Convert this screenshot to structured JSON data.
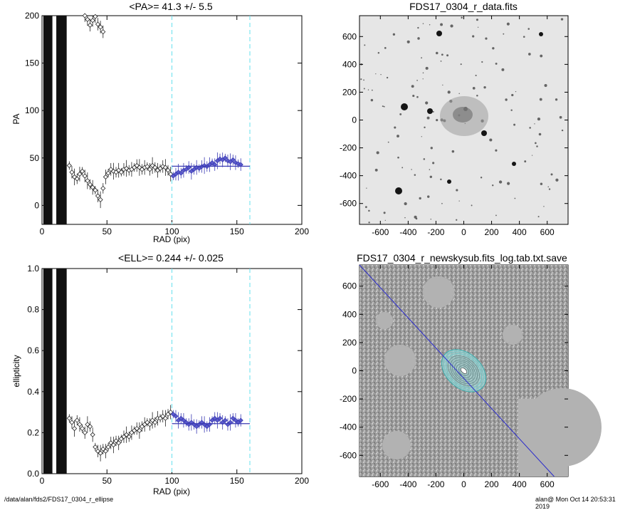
{
  "footer": {
    "path": "/data/alan/fds2/FDS17_0304_r_ellipse",
    "stamp": "alan@  Mon Oct 14 20:53:31 2019"
  },
  "chart_data": [
    {
      "type": "scatter",
      "title": "<PA>=  41.3 +/-   5.5",
      "xlabel": "RAD (pix)",
      "ylabel": "PA",
      "xlim": [
        0,
        200
      ],
      "ylim": [
        -20,
        200
      ],
      "xticks": [
        0,
        50,
        100,
        150,
        200
      ],
      "yticks": [
        0,
        50,
        100,
        150,
        200
      ],
      "reference_lines_x": [
        100,
        160
      ],
      "mean_line": {
        "value": 41.3,
        "x_range": [
          100,
          160
        ],
        "color": "#3b3bb3"
      },
      "series": [
        {
          "values": [
            [
              21,
              42
            ],
            [
              23,
              35
            ],
            [
              25,
              30
            ],
            [
              27,
              28
            ],
            [
              29,
              33
            ],
            [
              31,
              36
            ],
            [
              33,
              31
            ],
            [
              35,
              26
            ],
            [
              37,
              22
            ],
            [
              39,
              19
            ],
            [
              41,
              16
            ],
            [
              43,
              10
            ],
            [
              45,
              6
            ],
            [
              47,
              18
            ],
            [
              49,
              30
            ],
            [
              51,
              34
            ],
            [
              53,
              38
            ],
            [
              55,
              36
            ],
            [
              57,
              35
            ],
            [
              59,
              37
            ],
            [
              61,
              35
            ],
            [
              63,
              38
            ],
            [
              65,
              39
            ],
            [
              67,
              37
            ],
            [
              69,
              38
            ],
            [
              71,
              40
            ],
            [
              73,
              42
            ],
            [
              75,
              40
            ],
            [
              77,
              38
            ],
            [
              79,
              40
            ],
            [
              81,
              41
            ],
            [
              83,
              38
            ],
            [
              85,
              42
            ],
            [
              87,
              40
            ],
            [
              89,
              37
            ],
            [
              91,
              39
            ],
            [
              93,
              41
            ],
            [
              95,
              40
            ],
            [
              97,
              37
            ],
            [
              99,
              33
            ],
            [
              101,
              31
            ],
            [
              103,
              33
            ],
            [
              105,
              35
            ],
            [
              107,
              34
            ],
            [
              109,
              37
            ],
            [
              111,
              38
            ],
            [
              113,
              40
            ],
            [
              115,
              36
            ],
            [
              117,
              38
            ],
            [
              119,
              40
            ],
            [
              121,
              39
            ],
            [
              123,
              41
            ],
            [
              125,
              42
            ],
            [
              127,
              41
            ],
            [
              129,
              43
            ],
            [
              131,
              45
            ],
            [
              133,
              43
            ],
            [
              135,
              47
            ],
            [
              137,
              49
            ],
            [
              139,
              48
            ],
            [
              141,
              50
            ],
            [
              143,
              47
            ],
            [
              145,
              46
            ],
            [
              147,
              48
            ],
            [
              149,
              45
            ],
            [
              151,
              44
            ],
            [
              153,
              43
            ]
          ]
        }
      ],
      "upper_points": [
        [
          33,
          200
        ],
        [
          35,
          196
        ],
        [
          37,
          190
        ],
        [
          39,
          195
        ],
        [
          41,
          199
        ],
        [
          43,
          191
        ],
        [
          45,
          188
        ],
        [
          47,
          183
        ]
      ]
    },
    {
      "type": "scatter",
      "title": "<ELL>= 0.244 +/-  0.025",
      "xlabel": "RAD (pix)",
      "ylabel": "ellipticity",
      "xlim": [
        0,
        200
      ],
      "ylim": [
        0.0,
        1.0
      ],
      "xticks": [
        0,
        50,
        100,
        150,
        200
      ],
      "yticks": [
        0.0,
        0.2,
        0.4,
        0.6,
        0.8,
        1.0
      ],
      "reference_lines_x": [
        100,
        160
      ],
      "mean_line": {
        "value": 0.244,
        "x_range": [
          100,
          160
        ],
        "color": "#3b3bb3"
      },
      "series": [
        {
          "values": [
            [
              21,
              0.27
            ],
            [
              23,
              0.25
            ],
            [
              25,
              0.22
            ],
            [
              27,
              0.26
            ],
            [
              29,
              0.24
            ],
            [
              31,
              0.22
            ],
            [
              33,
              0.2
            ],
            [
              35,
              0.24
            ],
            [
              37,
              0.23
            ],
            [
              39,
              0.19
            ],
            [
              41,
              0.13
            ],
            [
              43,
              0.11
            ],
            [
              45,
              0.1
            ],
            [
              47,
              0.12
            ],
            [
              49,
              0.11
            ],
            [
              51,
              0.13
            ],
            [
              53,
              0.15
            ],
            [
              55,
              0.14
            ],
            [
              57,
              0.16
            ],
            [
              59,
              0.15
            ],
            [
              61,
              0.17
            ],
            [
              63,
              0.18
            ],
            [
              65,
              0.19
            ],
            [
              67,
              0.18
            ],
            [
              69,
              0.2
            ],
            [
              71,
              0.21
            ],
            [
              73,
              0.22
            ],
            [
              75,
              0.21
            ],
            [
              77,
              0.23
            ],
            [
              79,
              0.24
            ],
            [
              81,
              0.25
            ],
            [
              83,
              0.24
            ],
            [
              85,
              0.26
            ],
            [
              87,
              0.25
            ],
            [
              89,
              0.27
            ],
            [
              91,
              0.27
            ],
            [
              93,
              0.28
            ],
            [
              95,
              0.27
            ],
            [
              97,
              0.29
            ],
            [
              99,
              0.3
            ],
            [
              101,
              0.29
            ],
            [
              103,
              0.28
            ],
            [
              105,
              0.26
            ],
            [
              107,
              0.27
            ],
            [
              109,
              0.26
            ],
            [
              111,
              0.25
            ],
            [
              113,
              0.24
            ],
            [
              115,
              0.25
            ],
            [
              117,
              0.24
            ],
            [
              119,
              0.23
            ],
            [
              121,
              0.24
            ],
            [
              123,
              0.25
            ],
            [
              125,
              0.24
            ],
            [
              127,
              0.23
            ],
            [
              129,
              0.24
            ],
            [
              131,
              0.26
            ],
            [
              133,
              0.27
            ],
            [
              135,
              0.26
            ],
            [
              137,
              0.27
            ],
            [
              139,
              0.25
            ],
            [
              141,
              0.26
            ],
            [
              143,
              0.24
            ],
            [
              145,
              0.25
            ],
            [
              147,
              0.27
            ],
            [
              149,
              0.26
            ],
            [
              151,
              0.25
            ],
            [
              153,
              0.26
            ]
          ]
        }
      ]
    },
    {
      "type": "image",
      "title": "FDS17_0304_r_data.fits",
      "xlim": [
        -750,
        750
      ],
      "ylim": [
        -750,
        750
      ],
      "xticks": [
        -600,
        -400,
        -200,
        0,
        200,
        400,
        600
      ],
      "yticks": [
        -600,
        -400,
        -200,
        0,
        200,
        400,
        600
      ]
    },
    {
      "type": "image",
      "title": "FDS17_0304_r_newskysub.fits_log.tab.txt.save",
      "xlim": [
        -750,
        750
      ],
      "ylim": [
        -750,
        750
      ],
      "xticks": [
        -600,
        -400,
        -200,
        0,
        200,
        400,
        600
      ],
      "yticks": [
        -600,
        -400,
        -200,
        0,
        200,
        400,
        600
      ],
      "overlay_line": [
        [
          -750,
          750
        ],
        [
          650,
          -750
        ]
      ]
    }
  ]
}
